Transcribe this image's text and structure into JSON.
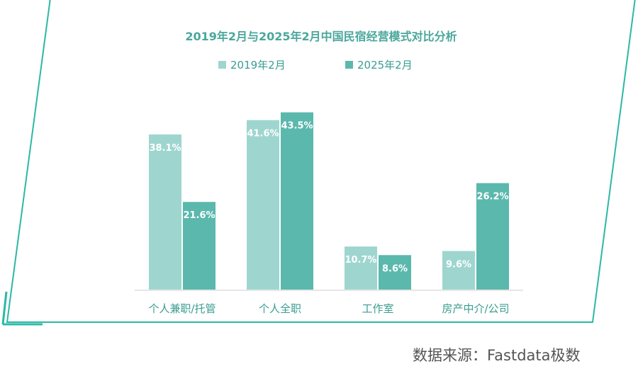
{
  "chart_data": {
    "type": "bar",
    "title": "2019年2月与2025年2月中国民宿经营模式对比分析",
    "categories": [
      "个人兼职/托管",
      "个人全职",
      "工作室",
      "房产中介/公司"
    ],
    "series": [
      {
        "name": "2019年2月",
        "values": [
          38.1,
          41.6,
          10.7,
          9.6
        ],
        "labels": [
          "38.1%",
          "41.6%",
          "10.7%",
          "9.6%"
        ],
        "color": "#9ed6cf"
      },
      {
        "name": "2025年2月",
        "values": [
          21.6,
          43.5,
          8.6,
          26.2
        ],
        "labels": [
          "21.6%",
          "43.5%",
          "8.6%",
          "26.2%"
        ],
        "color": "#5bb8ad"
      }
    ],
    "ylim": [
      0,
      45
    ],
    "grid": false,
    "legend": "top-center",
    "frame_color": "#2bb8a6",
    "title_color": "#4aa79c",
    "label_color": "#3a9d91"
  },
  "source": "数据来源：Fastdata极数"
}
